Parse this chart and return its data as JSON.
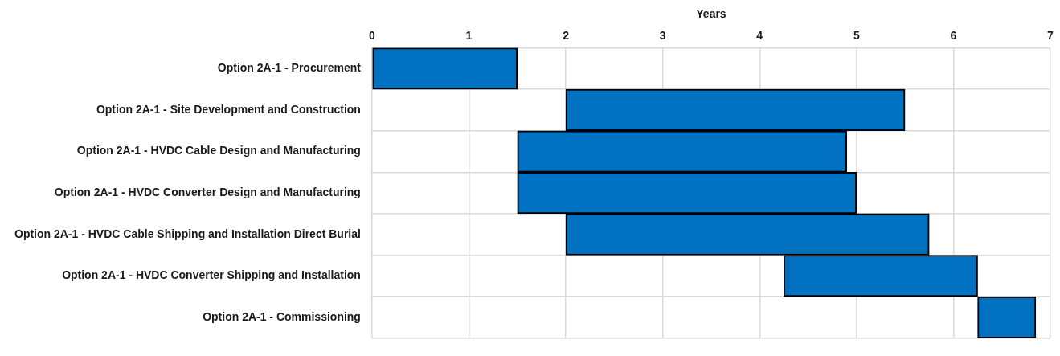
{
  "chart_data": {
    "type": "bar",
    "orientation": "horizontal",
    "xlabel": "Years",
    "categories": [
      "Option 2A-1 - Procurement",
      "Option 2A-1 - Site Development and Construction",
      "Option 2A-1 - HVDC Cable Design and Manufacturing",
      "Option 2A-1 - HVDC Converter Design and Manufacturing",
      "Option 2A-1 - HVDC Cable Shipping and Installation Direct Burial",
      "Option 2A-1 - HVDC Converter Shipping and Installation",
      "Option 2A-1 - Commissioning"
    ],
    "base": [
      0,
      2,
      1.5,
      1.5,
      2,
      4.25,
      6.25
    ],
    "values": [
      1.5,
      3.5,
      3.4,
      3.5,
      3.75,
      2,
      0.6
    ],
    "color": "#0070c0",
    "xlim": [
      0,
      7
    ],
    "xticks": [
      0,
      1,
      2,
      3,
      4,
      5,
      6,
      7
    ],
    "grid": true
  }
}
